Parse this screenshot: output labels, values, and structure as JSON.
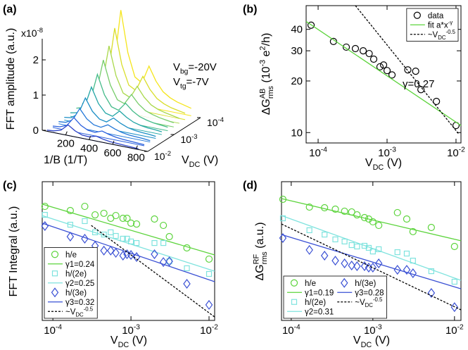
{
  "chart_data": [
    {
      "type": "waterfall",
      "panel_label": "(a)",
      "y_label": "FFT amplitude (a.u.)",
      "multiplier": [
        "x10",
        {
          "sup": "-8"
        }
      ],
      "x_label": "1/B (1/T)",
      "z_label": [
        "V",
        {
          "sub": "DC"
        },
        " (V)"
      ],
      "annotations": [
        [
          "V",
          {
            "sub": "bg"
          },
          "=-20V"
        ],
        [
          "V",
          {
            "sub": "tg"
          },
          "=-7V"
        ]
      ],
      "xlim": [
        0,
        900
      ],
      "xticks": [
        200,
        400,
        600,
        800
      ],
      "ylim": [
        0,
        2.6
      ],
      "yticks": [
        0,
        1,
        2
      ],
      "zscale": "log",
      "zlim": [
        0.0001,
        0.01
      ],
      "zticks": [
        {
          "value": 0.01,
          "label": [
            "10",
            {
              "sup": "-2"
            }
          ]
        },
        {
          "value": 0.001,
          "label": [
            "10",
            {
              "sup": "-3"
            }
          ]
        },
        {
          "value": 0.0001,
          "label": [
            "10",
            {
              "sup": "-4"
            }
          ]
        }
      ],
      "x": [
        40,
        100,
        160,
        220,
        280,
        340,
        400,
        460,
        520,
        580,
        640,
        700,
        760,
        820
      ],
      "series": [
        {
          "z": 0.0001,
          "color": "#f5e51b",
          "values": [
            0.26,
            0.39,
            0.91,
            2.6,
            1.43,
            0.78,
            0.65,
            1.17,
            0.78,
            0.52,
            0.39,
            0.31,
            0.26,
            0.21
          ]
        },
        {
          "z": 0.00017,
          "color": "#d9de2a",
          "values": [
            0.22,
            0.33,
            0.77,
            2.2,
            1.21,
            0.66,
            0.55,
            0.99,
            0.66,
            0.44,
            0.33,
            0.26,
            0.22,
            0.18
          ]
        },
        {
          "z": 0.00028,
          "color": "#a9d84a",
          "values": [
            0.18,
            0.27,
            0.63,
            1.8,
            0.99,
            0.54,
            0.45,
            0.81,
            0.54,
            0.36,
            0.27,
            0.22,
            0.18,
            0.14
          ]
        },
        {
          "z": 0.00046,
          "color": "#76cc6a",
          "values": [
            0.15,
            0.23,
            0.53,
            1.5,
            0.83,
            0.45,
            0.38,
            0.68,
            0.45,
            0.3,
            0.23,
            0.18,
            0.15,
            0.12
          ]
        },
        {
          "z": 0.00077,
          "color": "#45bb8a",
          "values": [
            0.12,
            0.18,
            0.42,
            1.2,
            0.66,
            0.36,
            0.3,
            0.54,
            0.36,
            0.24,
            0.18,
            0.14,
            0.12,
            0.1
          ]
        },
        {
          "z": 0.0013,
          "color": "#22a5a5",
          "values": [
            0.1,
            0.14,
            0.33,
            0.95,
            0.52,
            0.29,
            0.24,
            0.43,
            0.29,
            0.19,
            0.14,
            0.11,
            0.1,
            0.08
          ]
        },
        {
          "z": 0.0022,
          "color": "#1b8ec5",
          "values": [
            0.08,
            0.11,
            0.26,
            0.75,
            0.41,
            0.23,
            0.19,
            0.34,
            0.23,
            0.15,
            0.11,
            0.09,
            0.08,
            0.06
          ]
        },
        {
          "z": 0.0036,
          "color": "#2277d8",
          "values": [
            0.06,
            0.08,
            0.19,
            0.55,
            0.3,
            0.17,
            0.14,
            0.25,
            0.17,
            0.11,
            0.08,
            0.07,
            0.06,
            0.04
          ]
        },
        {
          "z": 0.006,
          "color": "#2a5fdc",
          "values": [
            0.04,
            0.06,
            0.14,
            0.4,
            0.22,
            0.12,
            0.1,
            0.18,
            0.12,
            0.08,
            0.06,
            0.05,
            0.04,
            0.03
          ]
        },
        {
          "z": 0.01,
          "color": "#2f45c8",
          "values": [
            0.03,
            0.05,
            0.11,
            0.3,
            0.17,
            0.09,
            0.08,
            0.14,
            0.09,
            0.06,
            0.05,
            0.04,
            0.03,
            0.02
          ]
        }
      ]
    },
    {
      "type": "scatter",
      "panel_label": "(b)",
      "x_label": [
        "V",
        {
          "sub": "DC"
        },
        " (V)"
      ],
      "y_label": [
        "ΔG",
        {
          "sup": "AB"
        },
        {
          "sub": "rms"
        },
        " (10",
        {
          "sup": "-3"
        },
        " e",
        {
          "sup": "2"
        },
        "/h)"
      ],
      "xscale": "log",
      "yscale": "log",
      "xlim": [
        6.7e-05,
        0.0118
      ],
      "ylim": [
        8.7,
        55
      ],
      "xticks": [
        {
          "value": 0.0001,
          "label": [
            "10",
            {
              "sup": "-4"
            }
          ]
        },
        {
          "value": 0.001,
          "label": [
            "10",
            {
              "sup": "-3"
            }
          ]
        },
        {
          "value": 0.01,
          "label": [
            "10",
            {
              "sup": "-2"
            }
          ]
        }
      ],
      "yticks": [
        10,
        20,
        30,
        40
      ],
      "legend": "upper right",
      "annotation": "γ=0.27",
      "series": [
        {
          "name": "data",
          "marker": "o",
          "color": "#000000",
          "x": [
            7.9e-05,
            0.000167,
            0.000256,
            0.000347,
            0.00045,
            0.00055,
            0.00064,
            0.00079,
            0.00089,
            0.001,
            0.00118,
            0.002,
            0.0026,
            0.0031,
            0.0052,
            0.01
          ],
          "values": [
            42.3,
            34,
            31.5,
            30.9,
            30,
            28.9,
            26.8,
            24.2,
            24.8,
            23,
            21.7,
            23.2,
            22.8,
            17.8,
            15.2,
            11
          ]
        },
        {
          "name": [
            "fit a*x",
            {
              "sup": "-γ"
            }
          ],
          "style": "solid",
          "color": "#5cd43c",
          "x": [
            6.7e-05,
            0.0118
          ],
          "values": [
            44.5,
            11
          ]
        },
        {
          "name": [
            "~V",
            {
              "sub": "DC"
            },
            {
              "sup": "-0.5"
            }
          ],
          "style": "dashed",
          "color": "#000000",
          "x": [
            0.000347,
            0.011
          ],
          "values": [
            55,
            9.8
          ]
        }
      ]
    },
    {
      "type": "scatter",
      "panel_label": "(c)",
      "x_label": [
        "V",
        {
          "sub": "DC"
        },
        " (V)"
      ],
      "y_label": "FFT Integral (a.u.)",
      "xscale": "log",
      "xlim": [
        7.3e-05,
        0.0118
      ],
      "ylim": [
        0,
        100
      ],
      "xticks": [
        {
          "value": 0.0001,
          "label": [
            "10",
            {
              "sup": "-4"
            }
          ]
        },
        {
          "value": 0.001,
          "label": [
            "10",
            {
              "sup": "-3"
            }
          ]
        },
        {
          "value": 0.01,
          "label": [
            "10",
            {
              "sup": "-2"
            }
          ]
        }
      ],
      "legend": "lower left",
      "legend_columns": 1,
      "series": [
        {
          "name": "h/e",
          "marker": "o",
          "color": "#5cd43c",
          "x": [
            7.9e-05,
            0.000167,
            0.000256,
            0.000347,
            0.00045,
            0.00055,
            0.00064,
            0.00079,
            0.00089,
            0.001,
            0.00118,
            0.002,
            0.0026,
            0.0031,
            0.0052,
            0.01
          ],
          "values": [
            82.2,
            79.2,
            82.2,
            76.1,
            77.2,
            73.6,
            75.6,
            73.6,
            73.6,
            70.1,
            69.5,
            73.1,
            68.5,
            60.4,
            52.3,
            44.2
          ]
        },
        {
          "name": "γ1=0.24",
          "style": "solid",
          "color": "#5cd43c",
          "x": [
            7.3e-05,
            0.0118
          ],
          "values": [
            83.8,
            47.2
          ]
        },
        {
          "name": "h/(2e)",
          "marker": "s",
          "color": "#7fe3de",
          "x": [
            7.9e-05,
            0.000167,
            0.000256,
            0.000347,
            0.00045,
            0.00055,
            0.00064,
            0.00079,
            0.00089,
            0.001,
            0.00118,
            0.002,
            0.0026,
            0.0031,
            0.0052,
            0.01
          ],
          "values": [
            76.1,
            69,
            71.6,
            63.5,
            61.9,
            63.5,
            60.9,
            58.9,
            58.9,
            56.9,
            55.8,
            55.8,
            55.8,
            42.6,
            37.6,
            33.5
          ]
        },
        {
          "name": "γ2=0.25",
          "style": "solid",
          "color": "#7fe3de",
          "x": [
            7.3e-05,
            0.0118
          ],
          "values": [
            75.6,
            35.5
          ]
        },
        {
          "name": "h/(3e)",
          "marker": "d",
          "color": "#3a50d4",
          "x": [
            7.9e-05,
            0.000167,
            0.000256,
            0.000347,
            0.00045,
            0.00055,
            0.00064,
            0.00079,
            0.00089,
            0.001,
            0.00118,
            0.002,
            0.0026,
            0.0031,
            0.0052,
            0.01
          ],
          "values": [
            68,
            60.4,
            58.9,
            53.8,
            50.3,
            50.3,
            48.7,
            46.7,
            47.7,
            47.2,
            45.7,
            47.7,
            42.1,
            42.6,
            26.4,
            11.2
          ]
        },
        {
          "name": "γ3=0.32",
          "style": "solid",
          "color": "#3a50d4",
          "x": [
            7.3e-05,
            0.0118
          ],
          "values": [
            70.1,
            27.9
          ]
        },
        {
          "name": [
            "~V",
            {
              "sub": "DC"
            },
            {
              "sup": "-0.5"
            }
          ],
          "style": "dashed",
          "color": "#000000",
          "x": [
            0.00031,
            0.0118
          ],
          "values": [
            68.5,
            2.5
          ]
        }
      ]
    },
    {
      "type": "scatter",
      "panel_label": "(d)",
      "x_label": [
        "V",
        {
          "sub": "DC"
        },
        " (V)"
      ],
      "y_label": [
        "ΔG",
        {
          "sup": "RF"
        },
        {
          "sub": "rms"
        },
        " (a.u.)"
      ],
      "xscale": "log",
      "xlim": [
        7.6e-05,
        0.012
      ],
      "ylim": [
        0,
        100
      ],
      "xticks": [
        {
          "value": 0.0001,
          "label": [
            "10",
            {
              "sup": "-4"
            }
          ]
        },
        {
          "value": 0.001,
          "label": [
            "10",
            {
              "sup": "-3"
            }
          ]
        },
        {
          "value": 0.01,
          "label": [
            "10",
            {
              "sup": "-2"
            }
          ]
        }
      ],
      "legend": "lower left",
      "legend_columns": 2,
      "series": [
        {
          "name": "h/e",
          "marker": "o",
          "color": "#5cd43c",
          "x": [
            7.9e-05,
            0.000167,
            0.000256,
            0.000347,
            0.00045,
            0.00055,
            0.00064,
            0.00079,
            0.00089,
            0.001,
            0.00118,
            0.002,
            0.0026,
            0.0031,
            0.0052,
            0.01
          ],
          "values": [
            87.3,
            81.7,
            81.2,
            80.2,
            78.7,
            78.2,
            76.1,
            74.1,
            73.1,
            71.1,
            68.5,
            77.7,
            73.1,
            64,
            67,
            53.3
          ]
        },
        {
          "name": "γ1=0.19",
          "style": "solid",
          "color": "#5cd43c",
          "x": [
            7.6e-05,
            0.012
          ],
          "values": [
            87.8,
            57.4
          ]
        },
        {
          "name": "h/(2e)",
          "marker": "s",
          "color": "#7fe3de",
          "x": [
            7.9e-05,
            0.000167,
            0.000256,
            0.000347,
            0.00045,
            0.00055,
            0.00064,
            0.00079,
            0.00089,
            0.001,
            0.00118,
            0.002,
            0.0026,
            0.0031,
            0.0052,
            0.01
          ],
          "values": [
            73.6,
            65,
            61.9,
            58.4,
            56.9,
            54.3,
            53.3,
            53.8,
            52.3,
            49.7,
            51.3,
            49.2,
            48.2,
            43.1,
            35.5,
            27.9
          ]
        },
        {
          "name": "γ2=0.31",
          "style": "solid",
          "color": "#7fe3de",
          "x": [
            7.6e-05,
            0.012
          ],
          "values": [
            75.6,
            28.9
          ]
        },
        {
          "name": "h/(3e)",
          "marker": "d",
          "color": "#3a50d4",
          "x": [
            7.9e-05,
            0.000167,
            0.000256,
            0.000347,
            0.00045,
            0.00055,
            0.00064,
            0.00079,
            0.00089,
            0.001,
            0.00118,
            0.002,
            0.0026,
            0.0031,
            0.0052,
            0.01
          ],
          "values": [
            59.4,
            50.8,
            46.7,
            43.1,
            41.1,
            39.6,
            39.1,
            39.1,
            38.1,
            38.1,
            41.1,
            36.5,
            36.5,
            34,
            19.8,
            9.6
          ]
        },
        {
          "name": "γ3=0.28",
          "style": "solid",
          "color": "#3a50d4",
          "x": [
            7.6e-05,
            0.012
          ],
          "values": [
            61.9,
            22.8
          ]
        },
        {
          "name": [
            "~V",
            {
              "sub": "DC"
            },
            {
              "sup": "-0.5"
            }
          ],
          "style": "dashed",
          "color": "#000000",
          "x": [
            7.6e-05,
            0.012
          ],
          "values": [
            69.5,
            7.6
          ]
        }
      ]
    }
  ]
}
